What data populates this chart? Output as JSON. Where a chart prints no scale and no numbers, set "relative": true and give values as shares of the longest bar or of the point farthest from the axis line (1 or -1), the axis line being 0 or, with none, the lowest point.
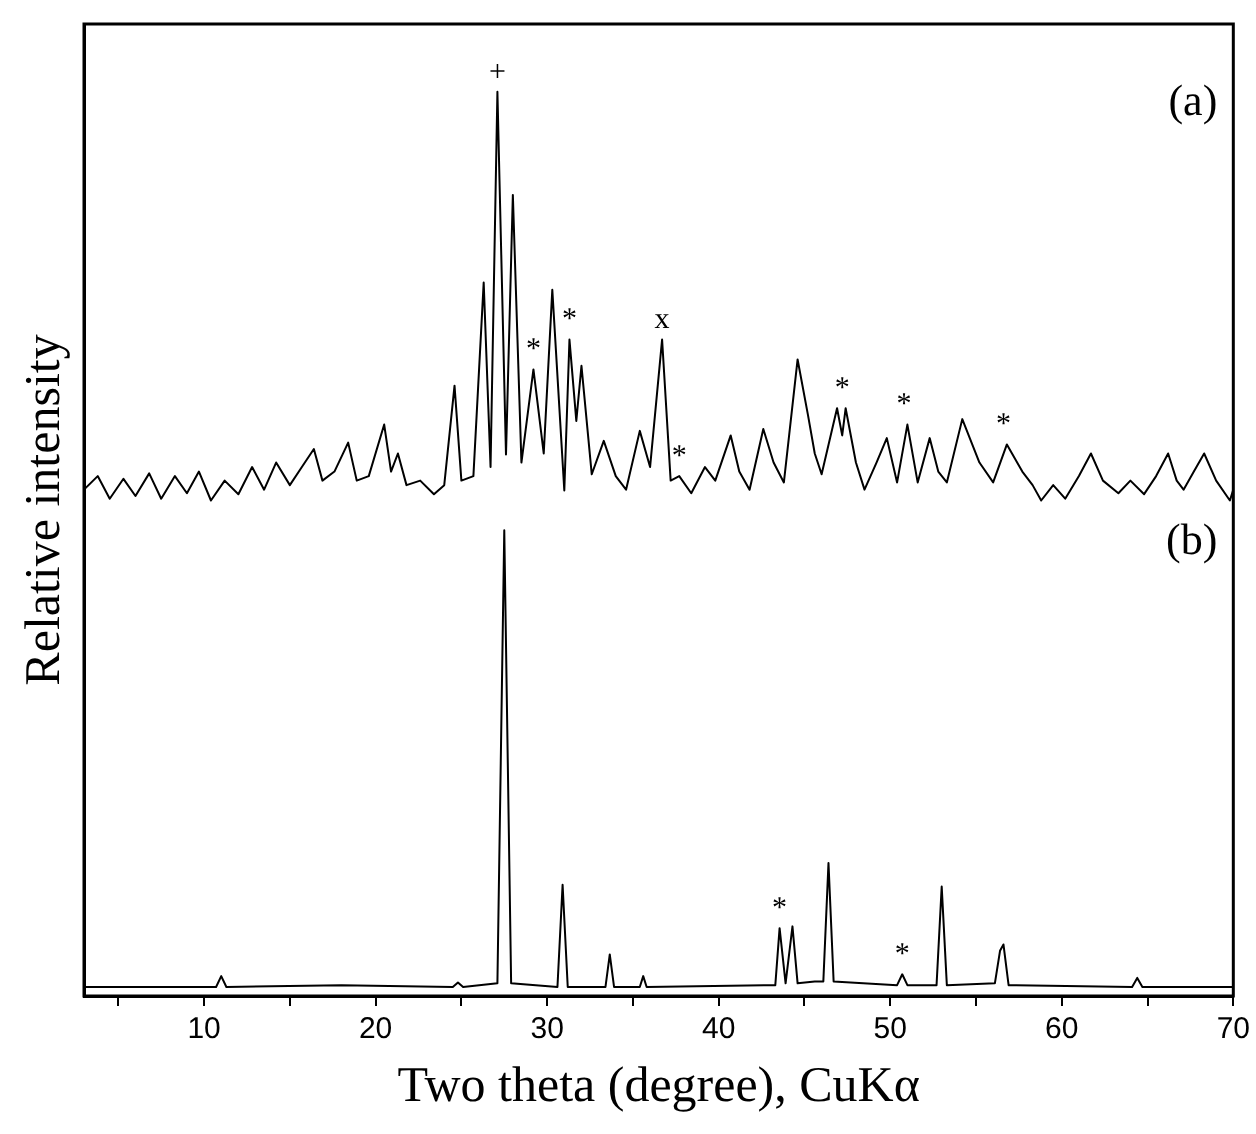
{
  "chart_data": {
    "type": "line",
    "xlabel": "Two theta (degree), CuKα",
    "ylabel": "Relative intensity",
    "relative": true,
    "legend": false,
    "grid": false,
    "marker": "none",
    "line_style": "solid",
    "xlim": [
      3,
      70
    ],
    "xticks": [
      {
        "value": 5,
        "label": null
      },
      10,
      {
        "value": 15,
        "label": null
      },
      20,
      {
        "value": 25,
        "label": null
      },
      30,
      {
        "value": 35,
        "label": null
      },
      40,
      {
        "value": 45,
        "label": null
      },
      50,
      {
        "value": 55,
        "label": null
      },
      60,
      {
        "value": 65,
        "label": null
      },
      70
    ],
    "series": [
      {
        "color": "#000000",
        "x": [
          3.0,
          3.8,
          4.5,
          5.3,
          6.0,
          6.8,
          7.5,
          8.3,
          9.0,
          9.7,
          10.4,
          11.2,
          12.0,
          12.8,
          13.5,
          14.2,
          15.0,
          15.7,
          16.4,
          16.9,
          17.6,
          18.4,
          18.9,
          19.6,
          20.5,
          20.9,
          21.3,
          21.8,
          22.6,
          23.4,
          24.0,
          24.6,
          25.0,
          25.7,
          26.3,
          26.7,
          27.1,
          27.6,
          28.0,
          28.5,
          29.2,
          29.8,
          30.3,
          31.0,
          31.3,
          31.7,
          32.0,
          32.6,
          33.3,
          34.0,
          34.6,
          35.4,
          36.0,
          36.7,
          37.2,
          37.7,
          38.4,
          39.2,
          39.8,
          40.7,
          41.2,
          41.8,
          42.6,
          43.2,
          43.8,
          44.6,
          45.2,
          45.6,
          46.0,
          46.9,
          47.2,
          47.4,
          48.0,
          48.5,
          49.2,
          49.8,
          50.4,
          51.0,
          51.6,
          52.3,
          52.8,
          53.3,
          54.2,
          55.2,
          56.0,
          56.8,
          57.7,
          58.3,
          58.8,
          59.5,
          60.2,
          61.0,
          61.7,
          62.4,
          63.3,
          64.0,
          64.8,
          65.5,
          66.2,
          66.7,
          67.1,
          67.7,
          68.3,
          69.0,
          69.8,
          70.0
        ],
        "values": [
          0.56,
          0.575,
          0.55,
          0.572,
          0.553,
          0.578,
          0.55,
          0.575,
          0.556,
          0.58,
          0.548,
          0.57,
          0.555,
          0.585,
          0.56,
          0.59,
          0.565,
          0.585,
          0.605,
          0.57,
          0.58,
          0.612,
          0.57,
          0.575,
          0.632,
          0.58,
          0.6,
          0.565,
          0.57,
          0.555,
          0.565,
          0.675,
          0.57,
          0.575,
          0.789,
          0.585,
          1.0,
          0.599,
          0.886,
          0.59,
          0.693,
          0.6,
          0.781,
          0.559,
          0.726,
          0.636,
          0.697,
          0.577,
          0.614,
          0.575,
          0.56,
          0.625,
          0.585,
          0.726,
          0.57,
          0.575,
          0.556,
          0.585,
          0.57,
          0.62,
          0.58,
          0.56,
          0.627,
          0.59,
          0.568,
          0.704,
          0.643,
          0.6,
          0.577,
          0.65,
          0.62,
          0.65,
          0.59,
          0.56,
          0.59,
          0.617,
          0.568,
          0.632,
          0.568,
          0.617,
          0.58,
          0.568,
          0.638,
          0.59,
          0.568,
          0.61,
          0.58,
          0.565,
          0.548,
          0.565,
          0.55,
          0.575,
          0.6,
          0.57,
          0.556,
          0.57,
          0.555,
          0.575,
          0.6,
          0.57,
          0.56,
          0.58,
          0.6,
          0.57,
          0.548,
          0.56
        ]
      },
      {
        "color": "#000000",
        "x": [
          3,
          10.7,
          11.0,
          11.3,
          18,
          24.5,
          24.8,
          25.1,
          27.1,
          27.5,
          27.9,
          30.6,
          30.9,
          31.2,
          33.4,
          33.65,
          33.9,
          35.4,
          35.6,
          35.8,
          43.3,
          43.55,
          43.9,
          44.3,
          44.6,
          45.6,
          46.1,
          46.4,
          46.7,
          50.4,
          50.7,
          51.0,
          52.7,
          53.0,
          53.3,
          56.1,
          56.4,
          56.6,
          56.9,
          64.1,
          64.4,
          64.7,
          70
        ],
        "values": [
          0.01,
          0.01,
          0.022,
          0.01,
          0.012,
          0.01,
          0.015,
          0.01,
          0.014,
          0.515,
          0.014,
          0.01,
          0.123,
          0.01,
          0.01,
          0.046,
          0.01,
          0.01,
          0.022,
          0.01,
          0.012,
          0.075,
          0.014,
          0.077,
          0.014,
          0.016,
          0.016,
          0.147,
          0.016,
          0.012,
          0.024,
          0.012,
          0.012,
          0.121,
          0.012,
          0.014,
          0.05,
          0.057,
          0.012,
          0.01,
          0.02,
          0.01,
          0.01
        ]
      }
    ],
    "annotations": [
      "(a)",
      "(b)",
      {
        "text": "+",
        "x": 27.1,
        "y": 1.0
      },
      {
        "text": "*",
        "x": 29.2,
        "y": 0.693
      },
      {
        "text": "*",
        "x": 31.3,
        "y": 0.726
      },
      {
        "text": "x",
        "x": 36.7,
        "y": 0.726
      },
      {
        "text": "*",
        "x": 37.7,
        "y": 0.575
      },
      {
        "text": "*",
        "x": 47.2,
        "y": 0.65
      },
      {
        "text": "*",
        "x": 50.8,
        "y": 0.632
      },
      {
        "text": "*",
        "x": 56.6,
        "y": 0.61
      },
      {
        "text": "*",
        "x": 43.55,
        "y": 0.075
      },
      {
        "text": "*",
        "x": 50.7,
        "y": 0.024
      }
    ]
  }
}
